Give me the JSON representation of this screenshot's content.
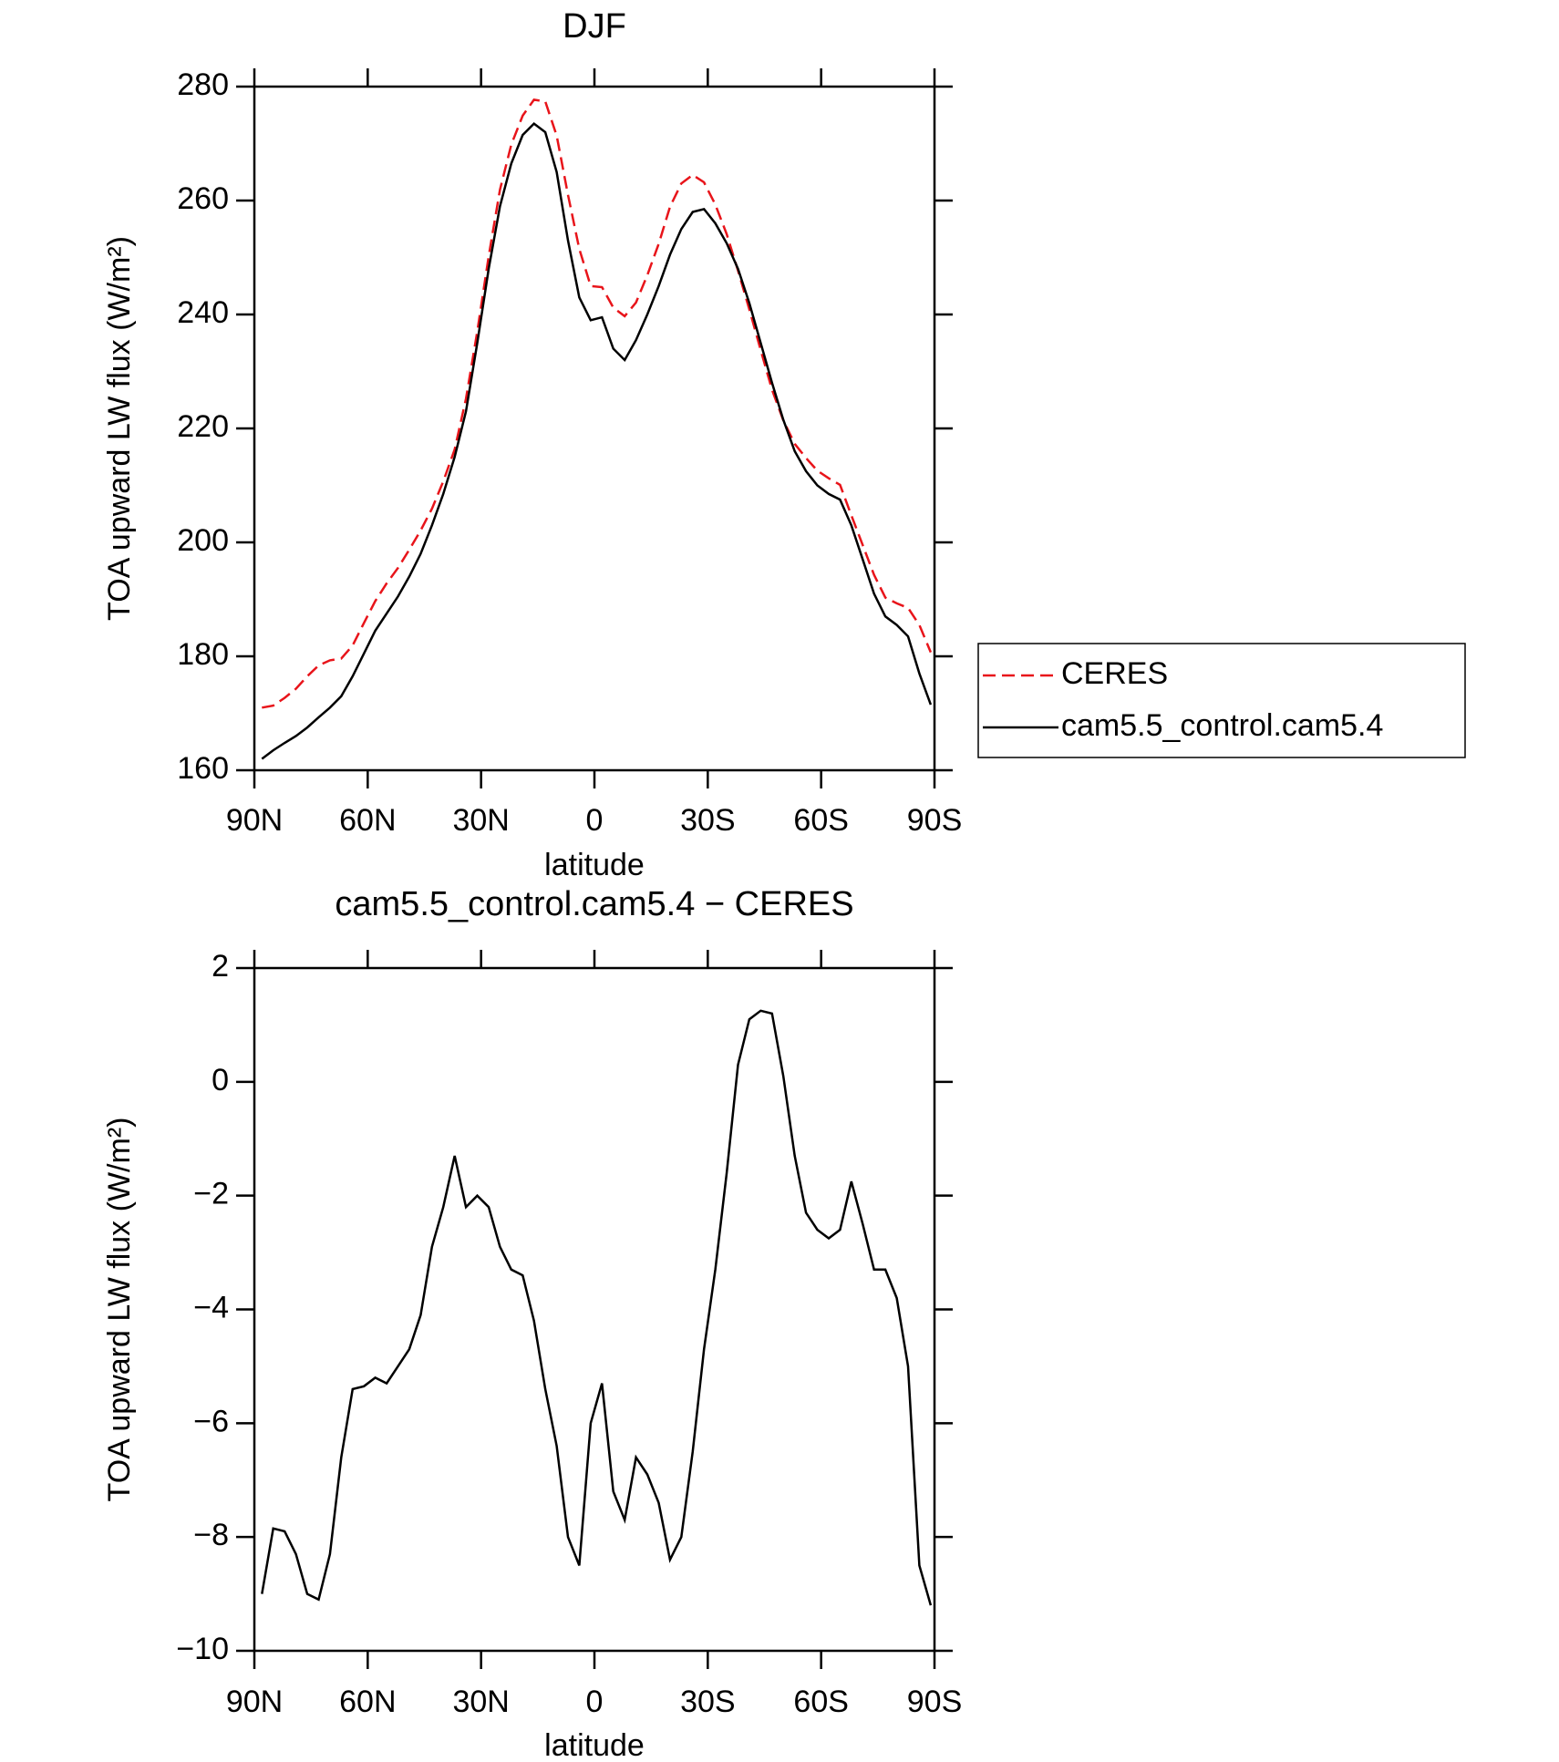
{
  "chart_data": [
    {
      "type": "line",
      "title": "DJF",
      "xlabel": "latitude",
      "ylabel": "TOA upward LW flux (W/m²)",
      "x": [
        88,
        85,
        82,
        79,
        76,
        73,
        70,
        67,
        64,
        61,
        58,
        55,
        52,
        49,
        46,
        43,
        40,
        37,
        34,
        31,
        28,
        25,
        22,
        19,
        16,
        13,
        10,
        7,
        4,
        1,
        -2,
        -5,
        -8,
        -11,
        -14,
        -17,
        -20,
        -23,
        -26,
        -29,
        -32,
        -35,
        -38,
        -41,
        -44,
        -47,
        -50,
        -53,
        -56,
        -59,
        -62,
        -65,
        -68,
        -71,
        -74,
        -77,
        -80,
        -83,
        -86,
        -89
      ],
      "series": [
        {
          "name": "CERES",
          "color": "#e8141a",
          "dash": true,
          "values": [
            171,
            171.35,
            172.7,
            174.3,
            176.5,
            178.4,
            179.3,
            179.6,
            181.9,
            185.85,
            189.7,
            192.8,
            195.5,
            198.7,
            202.1,
            205.9,
            210.7,
            216.3,
            225.2,
            237,
            250.2,
            261.9,
            269.8,
            274.9,
            277.7,
            277.4,
            271.4,
            261,
            251.5,
            245,
            244.8,
            241.2,
            239.7,
            242.1,
            246.9,
            252.4,
            258.9,
            263,
            264.5,
            263.2,
            259.3,
            254.1,
            247.7,
            240.9,
            233.75,
            226.8,
            221.4,
            217.3,
            214.8,
            212.6,
            211.25,
            210.1,
            204.75,
            199.5,
            194.3,
            190.3,
            189.3,
            188.5,
            185.5,
            180.7
          ]
        },
        {
          "name": "cam5.5_control.cam5.4",
          "color": "#000000",
          "dash": false,
          "values": [
            162,
            163.5,
            164.8,
            166,
            167.5,
            169.3,
            171,
            173,
            176.5,
            180.5,
            184.5,
            187.5,
            190.5,
            194,
            198,
            203,
            208.5,
            215,
            223,
            235,
            248,
            259,
            266.5,
            271.5,
            273.5,
            272,
            265,
            253,
            243,
            239,
            239.5,
            234,
            232,
            235.5,
            240,
            245,
            250.5,
            255,
            258,
            258.5,
            256,
            252.5,
            248,
            242,
            235,
            228,
            221.5,
            216,
            212.5,
            210,
            208.5,
            207.5,
            203,
            197,
            191,
            187,
            185.5,
            183.5,
            177,
            171.5
          ]
        }
      ],
      "xlim": [
        90,
        -90
      ],
      "xticks": [
        {
          "value": 90,
          "label": "90N"
        },
        {
          "value": 60,
          "label": "60N"
        },
        {
          "value": 30,
          "label": "30N"
        },
        0,
        {
          "value": -30,
          "label": "30S"
        },
        {
          "value": -60,
          "label": "60S"
        },
        {
          "value": -90,
          "label": "90S"
        }
      ],
      "ylim": [
        160,
        280
      ],
      "yticks": [
        160,
        180,
        200,
        220,
        240,
        260,
        280
      ],
      "legend": "right"
    },
    {
      "type": "line",
      "title": "cam5.5_control.cam5.4 − CERES",
      "xlabel": "latitude",
      "ylabel": "TOA upward LW flux (W/m²)",
      "x": [
        88,
        85,
        82,
        79,
        76,
        73,
        70,
        67,
        64,
        61,
        58,
        55,
        52,
        49,
        46,
        43,
        40,
        37,
        34,
        31,
        28,
        25,
        22,
        19,
        16,
        13,
        10,
        7,
        4,
        1,
        -2,
        -5,
        -8,
        -11,
        -14,
        -17,
        -20,
        -23,
        -26,
        -29,
        -32,
        -35,
        -38,
        -41,
        -44,
        -47,
        -50,
        -53,
        -56,
        -59,
        -62,
        -65,
        -68,
        -71,
        -74,
        -77,
        -80,
        -83,
        -86,
        -89
      ],
      "series": [
        {
          "color": "#000000",
          "dash": false,
          "values": [
            -9.0,
            -7.85,
            -7.9,
            -8.3,
            -9.0,
            -9.1,
            -8.3,
            -6.6,
            -5.4,
            -5.35,
            -5.2,
            -5.3,
            -5.0,
            -4.7,
            -4.1,
            -2.9,
            -2.2,
            -1.3,
            -2.2,
            -2.0,
            -2.2,
            -2.9,
            -3.3,
            -3.4,
            -4.2,
            -5.4,
            -6.4,
            -8.0,
            -8.5,
            -6.0,
            -5.3,
            -7.2,
            -7.7,
            -6.6,
            -6.9,
            -7.4,
            -8.4,
            -8.0,
            -6.5,
            -4.7,
            -3.3,
            -1.6,
            0.3,
            1.1,
            1.25,
            1.2,
            0.1,
            -1.3,
            -2.3,
            -2.6,
            -2.75,
            -2.6,
            -1.75,
            -2.5,
            -3.3,
            -3.3,
            -3.8,
            -5.0,
            -8.5,
            -9.2
          ]
        }
      ],
      "xlim": [
        90,
        -90
      ],
      "xticks": [
        {
          "value": 90,
          "label": "90N"
        },
        {
          "value": 60,
          "label": "60N"
        },
        {
          "value": 30,
          "label": "30N"
        },
        0,
        {
          "value": -30,
          "label": "30S"
        },
        {
          "value": -60,
          "label": "60S"
        },
        {
          "value": -90,
          "label": "90S"
        }
      ],
      "ylim": [
        -10,
        2
      ],
      "yticks": [
        {
          "value": -10,
          "label": "−10"
        },
        {
          "value": -8,
          "label": "−8"
        },
        {
          "value": -6,
          "label": "−6"
        },
        {
          "value": -4,
          "label": "−4"
        },
        {
          "value": -2,
          "label": "−2"
        },
        0,
        2
      ]
    }
  ]
}
